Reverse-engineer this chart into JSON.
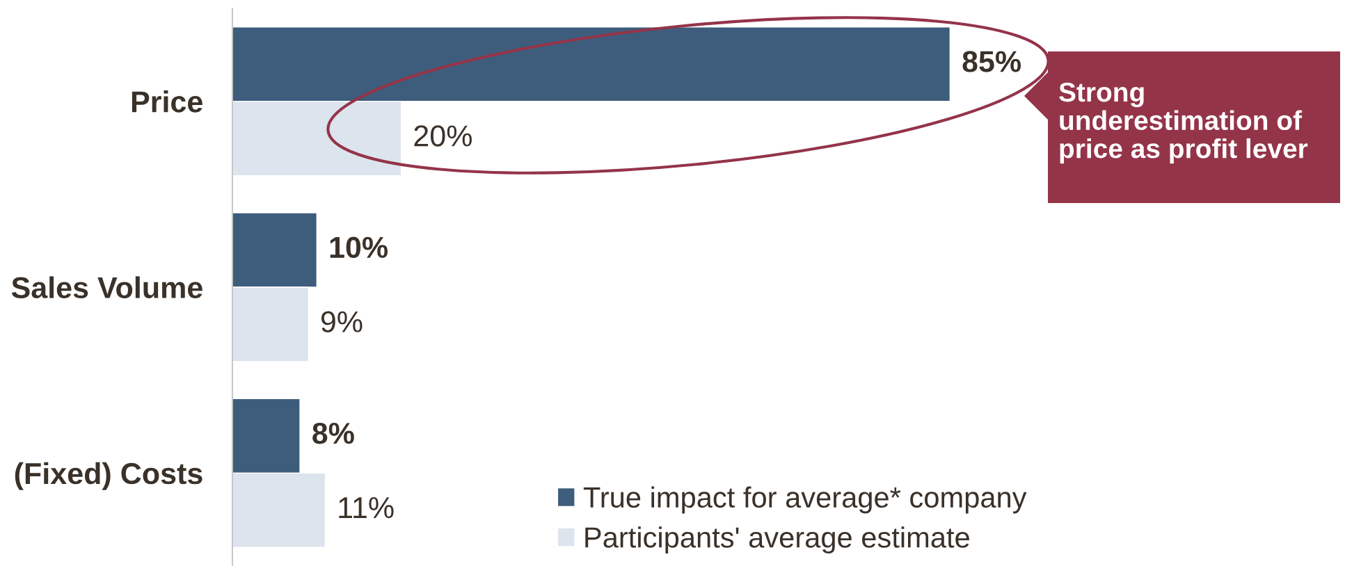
{
  "chart_data": {
    "type": "bar",
    "orientation": "horizontal",
    "categories": [
      "Price",
      "Sales Volume",
      "(Fixed) Costs"
    ],
    "series": [
      {
        "name": "True impact for average* company",
        "color": "#3e5d7c",
        "values": [
          85,
          10,
          8
        ],
        "value_labels": [
          "85%",
          "10%",
          "8%"
        ]
      },
      {
        "name": "Participants' average estimate",
        "color": "#dce4ed",
        "values": [
          20,
          9,
          11
        ],
        "value_labels": [
          "20%",
          "9%",
          "11%"
        ]
      }
    ],
    "annotations": [
      "Strong underestimation of price as profit lever"
    ],
    "legend": "bottom",
    "tick_labels": "y"
  }
}
